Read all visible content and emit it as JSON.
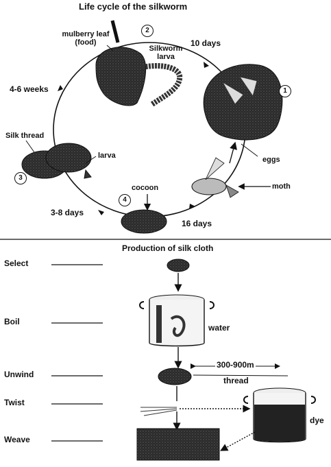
{
  "life_cycle": {
    "title": "Life cycle of the silkworm",
    "stages": [
      {
        "number": "1",
        "label": "eggs",
        "extra_label": "moth"
      },
      {
        "number": "2",
        "label": "Silkworm larva",
        "food_label": "mulberry leaf (food)"
      },
      {
        "number": "3",
        "label": "Silk thread",
        "larva_label": "larva"
      },
      {
        "number": "4",
        "label": "cocoon"
      }
    ],
    "durations": {
      "d_1_2": "10 days",
      "d_2_3": "4-6 weeks",
      "d_3_4": "3-8 days",
      "d_4_1": "16 days"
    }
  },
  "production": {
    "title": "Production of silk cloth",
    "steps": [
      "Select",
      "Boil",
      "Unwind",
      "Twist",
      "Weave"
    ],
    "labels": {
      "water": "water",
      "length": "300-900m",
      "thread": "thread",
      "dye": "dye"
    }
  }
}
